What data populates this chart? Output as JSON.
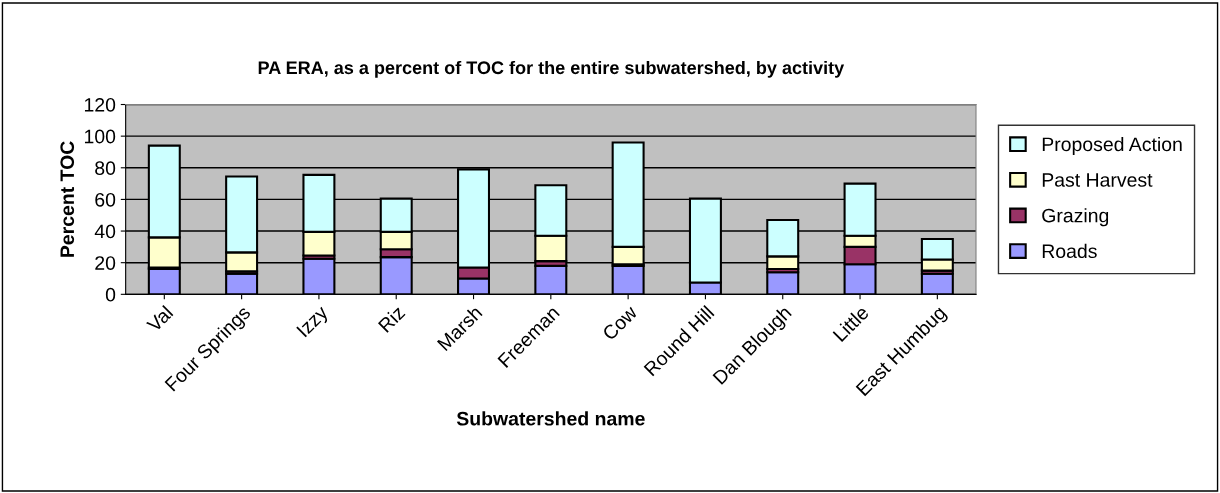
{
  "chart_data": {
    "type": "bar",
    "stacked": true,
    "title": "PA ERA, as a percent of TOC for the entire subwatershed, by activity",
    "xlabel": "Subwatershed name",
    "ylabel": "Percent TOC",
    "categories": [
      "Val",
      "Four Springs",
      "Izzy",
      "Riz",
      "Marsh",
      "Freeman",
      "Cow",
      "Round Hill",
      "Dan Blough",
      "Little",
      "East Humbug"
    ],
    "series": [
      {
        "name": "Roads",
        "color": "#9999ff",
        "values": [
          16,
          13,
          22.5,
          23.5,
          10,
          18,
          18,
          7.5,
          14,
          19,
          13
        ]
      },
      {
        "name": "Grazing",
        "color": "#993366",
        "values": [
          1,
          1.5,
          2,
          5,
          7,
          3,
          1,
          null,
          2,
          11,
          2
        ]
      },
      {
        "name": "Past Harvest",
        "color": "#ffffcc",
        "values": [
          19,
          12,
          15,
          11,
          null,
          16,
          11,
          null,
          8,
          7,
          7
        ]
      },
      {
        "name": "Proposed Action",
        "color": "#ccffff",
        "values": [
          58,
          48,
          36,
          21,
          62,
          32,
          66,
          53,
          23,
          33,
          13
        ]
      }
    ],
    "ylim": [
      0,
      120
    ],
    "yticks": [
      0,
      20,
      40,
      60,
      80,
      100,
      120
    ],
    "grid": "y",
    "legend": "right"
  }
}
